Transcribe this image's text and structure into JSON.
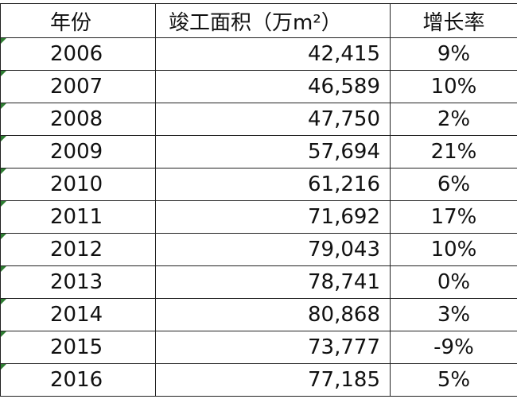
{
  "table": {
    "header": [
      "年份",
      "竣工面积（万m²）",
      "增长率"
    ],
    "rows": [
      [
        "2006",
        "42,415",
        "9%"
      ],
      [
        "2007",
        "46,589",
        "10%"
      ],
      [
        "2008",
        "47,750",
        "2%"
      ],
      [
        "2009",
        "57,694",
        "21%"
      ],
      [
        "2010",
        "61,216",
        "6%"
      ],
      [
        "2011",
        "71,692",
        "17%"
      ],
      [
        "2012",
        "79,043",
        "10%"
      ],
      [
        "2013",
        "78,741",
        "0%"
      ],
      [
        "2014",
        "80,868",
        "3%"
      ],
      [
        "2015",
        "73,777",
        "-9%"
      ],
      [
        "2016",
        "77,185",
        "5%"
      ]
    ]
  }
}
